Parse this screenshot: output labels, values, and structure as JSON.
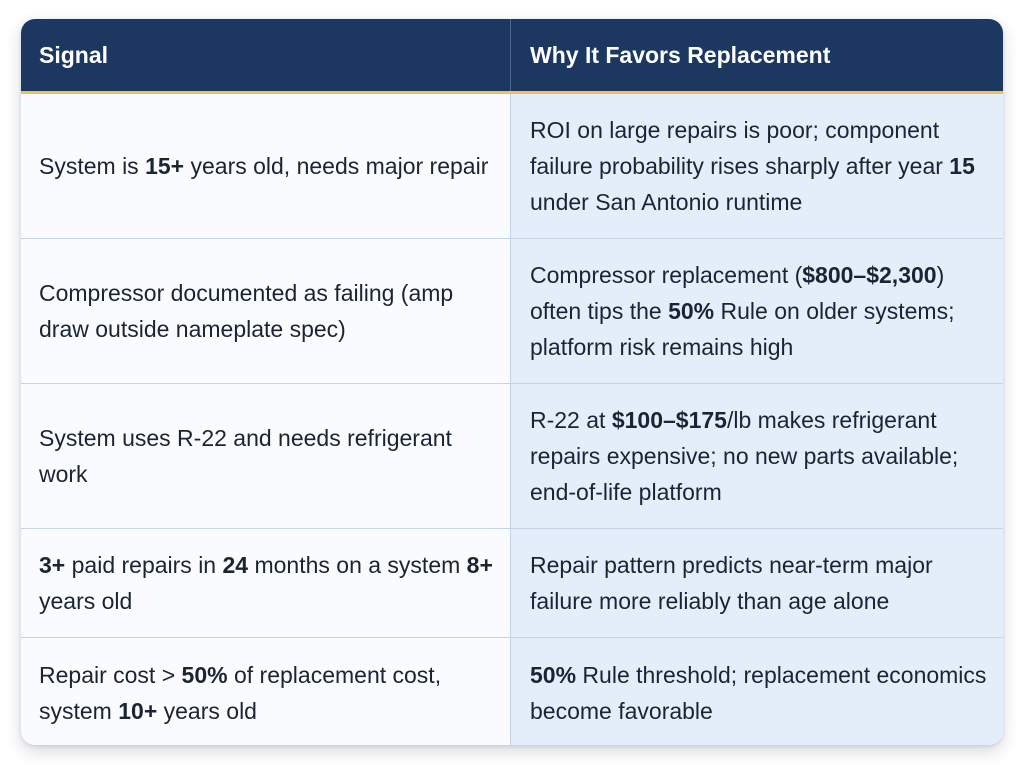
{
  "table": {
    "headers": [
      "Signal",
      "Why It Favors Replacement"
    ],
    "rows": [
      {
        "signal": [
          {
            "t": "System is ",
            "b": false
          },
          {
            "t": "15+",
            "b": true
          },
          {
            "t": " years old, needs major repair",
            "b": false
          }
        ],
        "reason": [
          {
            "t": "ROI on large repairs is poor; component failure probability rises sharply after year ",
            "b": false
          },
          {
            "t": "15",
            "b": true
          },
          {
            "t": " under San Antonio runtime",
            "b": false
          }
        ]
      },
      {
        "signal": [
          {
            "t": "Compressor documented as failing (amp draw outside nameplate spec)",
            "b": false
          }
        ],
        "reason": [
          {
            "t": "Compressor replacement (",
            "b": false
          },
          {
            "t": "$800–$2,300",
            "b": true
          },
          {
            "t": ") often tips the ",
            "b": false
          },
          {
            "t": "50%",
            "b": true
          },
          {
            "t": " Rule on older systems; platform risk remains high",
            "b": false
          }
        ]
      },
      {
        "signal": [
          {
            "t": "System uses R-22 and needs refrigerant work",
            "b": false
          }
        ],
        "reason": [
          {
            "t": "R-22 at ",
            "b": false
          },
          {
            "t": "$100–$175",
            "b": true
          },
          {
            "t": "/lb makes refrigerant repairs expensive; no new parts available; end-of-life platform",
            "b": false
          }
        ]
      },
      {
        "signal": [
          {
            "t": "3+",
            "b": true
          },
          {
            "t": " paid repairs in ",
            "b": false
          },
          {
            "t": "24",
            "b": true
          },
          {
            "t": " months on a system ",
            "b": false
          },
          {
            "t": "8+",
            "b": true
          },
          {
            "t": " years old",
            "b": false
          }
        ],
        "reason": [
          {
            "t": "Repair pattern predicts near-term major failure more reliably than age alone",
            "b": false
          }
        ]
      },
      {
        "signal": [
          {
            "t": "Repair cost > ",
            "b": false
          },
          {
            "t": "50%",
            "b": true
          },
          {
            "t": " of replacement cost, system ",
            "b": false
          },
          {
            "t": "10+",
            "b": true
          },
          {
            "t": " years old",
            "b": false
          }
        ],
        "reason": [
          {
            "t": "50%",
            "b": true
          },
          {
            "t": " Rule threshold; replacement economics become favorable",
            "b": false
          }
        ]
      }
    ]
  }
}
